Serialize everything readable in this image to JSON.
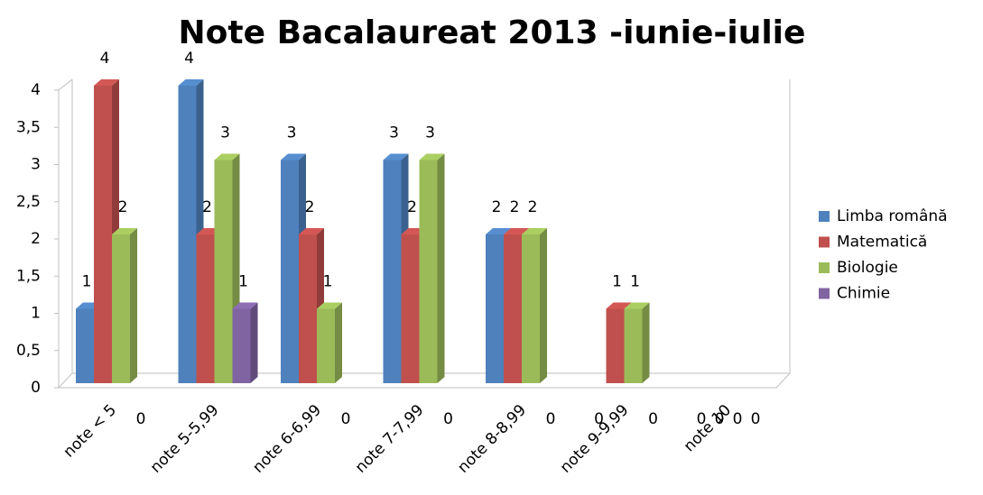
{
  "chart_data": {
    "type": "bar",
    "title": "Note Bacalaureat 2013 -iunie-iulie",
    "categories": [
      "note < 5",
      "note 5-5,99",
      "note 6-6,99",
      "note 7-7,99",
      "note 8-8,99",
      "note 9-9,99",
      "note 10"
    ],
    "series": [
      {
        "name": "Limba română",
        "color": "#4f81bd",
        "values": [
          1,
          4,
          3,
          3,
          2,
          0,
          0
        ]
      },
      {
        "name": "Matematică",
        "color": "#c0504d",
        "values": [
          4,
          2,
          2,
          2,
          2,
          1,
          0
        ]
      },
      {
        "name": "Biologie",
        "color": "#9bbb59",
        "values": [
          2,
          3,
          1,
          3,
          2,
          1,
          0
        ]
      },
      {
        "name": "Chimie",
        "color": "#8064a2",
        "values": [
          0,
          1,
          0,
          0,
          0,
          0,
          0
        ]
      }
    ],
    "ylim": [
      0,
      4
    ],
    "yticks": [
      0,
      {
        "value": 0.5,
        "label": "0,5"
      },
      1,
      {
        "value": 1.5,
        "label": "1,5"
      },
      2,
      {
        "value": 2.5,
        "label": "2,5"
      },
      3,
      {
        "value": 3.5,
        "label": "3,5"
      },
      4
    ],
    "legend": "right"
  }
}
